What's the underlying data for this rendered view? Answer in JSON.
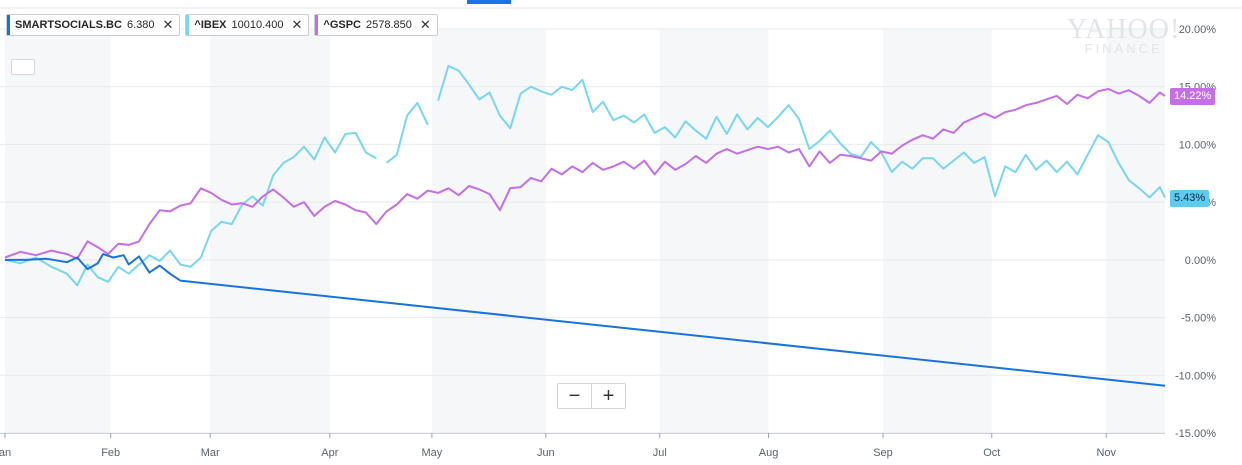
{
  "watermark": {
    "line1": "YAHOO!",
    "line2": "FINANCE"
  },
  "legend": [
    {
      "symbol": "SMARTSOCIALS.BC",
      "value": "6.380",
      "color": "#1874dc"
    },
    {
      "symbol": "^IBEX",
      "value": "10010.400",
      "color": "#78d6f0"
    },
    {
      "symbol": "^GSPC",
      "value": "2578.850",
      "color": "#c46ee8"
    }
  ],
  "zoom": {
    "minus": "−",
    "plus": "+"
  },
  "last_labels": {
    "gspc": "14.22%",
    "ibex": "5.43%"
  },
  "chart_data": {
    "type": "line",
    "x_unit": "trading day index (0 = early Jan)",
    "x_range": [
      0,
      225
    ],
    "ylim": [
      -15,
      20
    ],
    "y_ticks": [
      "20.00%",
      "15.00%",
      "10.00%",
      "5.00%",
      "0.00%",
      "-5.00%",
      "-10.00%",
      "-15.00%"
    ],
    "y_tick_values": [
      20,
      15,
      10,
      5,
      0,
      -5,
      -10,
      -15
    ],
    "months": [
      {
        "label": "an",
        "x": 0
      },
      {
        "label": "Feb",
        "x": 20.5
      },
      {
        "label": "Mar",
        "x": 39.8
      },
      {
        "label": "Apr",
        "x": 63.0
      },
      {
        "label": "May",
        "x": 82.8
      },
      {
        "label": "Jun",
        "x": 104.9
      },
      {
        "label": "Jul",
        "x": 127.0
      },
      {
        "label": "Aug",
        "x": 148.1
      },
      {
        "label": "Sep",
        "x": 170.3
      },
      {
        "label": "Oct",
        "x": 191.4
      },
      {
        "label": "Nov",
        "x": 213.6
      }
    ],
    "grid": true,
    "legend_position": "top-left",
    "series": [
      {
        "name": "SMARTSOCIALS.BC",
        "color": "#1874dc",
        "points": [
          [
            0,
            0.0
          ],
          [
            4,
            0.0
          ],
          [
            8,
            0.1
          ],
          [
            12,
            -0.2
          ],
          [
            14,
            0.2
          ],
          [
            16,
            -0.8
          ],
          [
            18,
            -0.3
          ],
          [
            19,
            0.5
          ],
          [
            21,
            0.2
          ],
          [
            23,
            0.4
          ],
          [
            24,
            -0.4
          ],
          [
            26,
            0.3
          ],
          [
            28,
            -1.1
          ],
          [
            30,
            -0.5
          ],
          [
            32,
            -1.2
          ],
          [
            34,
            -1.8
          ],
          [
            225,
            -10.9
          ]
        ]
      },
      {
        "name": "^IBEX",
        "color": "#78d6f0",
        "segments": [
          [
            [
              0,
              0.0
            ],
            [
              3,
              -0.3
            ],
            [
              6,
              0.2
            ],
            [
              9,
              -0.6
            ],
            [
              12,
              -1.2
            ],
            [
              14,
              -2.2
            ],
            [
              16,
              -0.4
            ],
            [
              18,
              -1.5
            ],
            [
              20,
              -1.9
            ],
            [
              22,
              -0.6
            ],
            [
              24,
              -1.2
            ],
            [
              26,
              -0.4
            ],
            [
              28,
              0.4
            ],
            [
              30,
              -0.1
            ],
            [
              32,
              0.8
            ],
            [
              34,
              -0.4
            ],
            [
              36,
              -0.6
            ],
            [
              38,
              0.2
            ],
            [
              40,
              2.5
            ],
            [
              42,
              3.3
            ],
            [
              44,
              3.1
            ],
            [
              46,
              4.8
            ],
            [
              48,
              5.5
            ],
            [
              50,
              4.7
            ],
            [
              52,
              7.3
            ],
            [
              54,
              8.4
            ],
            [
              56,
              8.9
            ],
            [
              58,
              9.8
            ],
            [
              60,
              8.7
            ],
            [
              62,
              10.6
            ],
            [
              64,
              9.3
            ],
            [
              66,
              10.9
            ],
            [
              68,
              11.0
            ],
            [
              70,
              9.3
            ],
            [
              72,
              8.8
            ]
          ],
          [
            [
              74,
              8.4
            ],
            [
              76,
              9.1
            ],
            [
              78,
              12.5
            ],
            [
              80,
              13.6
            ],
            [
              82,
              11.7
            ]
          ],
          [
            [
              84,
              13.8
            ],
            [
              86,
              16.8
            ],
            [
              88,
              16.4
            ],
            [
              90,
              15.2
            ],
            [
              92,
              13.9
            ],
            [
              94,
              14.5
            ],
            [
              96,
              12.5
            ],
            [
              98,
              11.4
            ],
            [
              100,
              14.4
            ],
            [
              102,
              15.0
            ],
            [
              104,
              14.6
            ],
            [
              106,
              14.3
            ],
            [
              108,
              15.0
            ],
            [
              110,
              14.7
            ],
            [
              112,
              15.6
            ],
            [
              114,
              12.8
            ],
            [
              116,
              13.7
            ],
            [
              118,
              12.1
            ],
            [
              120,
              12.5
            ],
            [
              122,
              11.9
            ],
            [
              124,
              12.6
            ],
            [
              126,
              11.0
            ],
            [
              128,
              11.5
            ],
            [
              130,
              10.6
            ],
            [
              132,
              12.0
            ],
            [
              134,
              11.2
            ],
            [
              136,
              10.5
            ],
            [
              138,
              12.4
            ],
            [
              140,
              10.9
            ],
            [
              142,
              12.6
            ],
            [
              144,
              11.3
            ],
            [
              146,
              12.3
            ],
            [
              148,
              11.5
            ],
            [
              150,
              12.4
            ],
            [
              152,
              13.4
            ],
            [
              154,
              12.2
            ],
            [
              156,
              9.6
            ],
            [
              158,
              10.3
            ],
            [
              160,
              11.2
            ],
            [
              162,
              10.1
            ],
            [
              164,
              9.2
            ],
            [
              166,
              8.9
            ],
            [
              168,
              10.2
            ],
            [
              170,
              9.3
            ],
            [
              172,
              7.6
            ],
            [
              174,
              8.5
            ],
            [
              176,
              7.9
            ],
            [
              178,
              8.8
            ],
            [
              180,
              8.8
            ],
            [
              182,
              7.9
            ],
            [
              184,
              8.6
            ],
            [
              186,
              9.3
            ],
            [
              188,
              8.4
            ],
            [
              190,
              8.9
            ],
            [
              192,
              5.5
            ],
            [
              194,
              8.1
            ],
            [
              196,
              7.6
            ],
            [
              198,
              9.1
            ],
            [
              200,
              7.8
            ],
            [
              202,
              8.6
            ],
            [
              204,
              7.6
            ],
            [
              206,
              8.5
            ],
            [
              208,
              7.4
            ],
            [
              210,
              9.1
            ],
            [
              212,
              10.8
            ],
            [
              214,
              10.2
            ],
            [
              216,
              8.4
            ],
            [
              218,
              6.9
            ],
            [
              220,
              6.2
            ],
            [
              222,
              5.4
            ],
            [
              224,
              6.3
            ],
            [
              225,
              5.4
            ]
          ]
        ]
      },
      {
        "name": "^GSPC",
        "color": "#c46ee8",
        "points": [
          [
            0,
            0.2
          ],
          [
            3,
            0.7
          ],
          [
            6,
            0.4
          ],
          [
            9,
            0.8
          ],
          [
            12,
            0.5
          ],
          [
            14,
            0.1
          ],
          [
            16,
            1.6
          ],
          [
            18,
            1.1
          ],
          [
            20,
            0.5
          ],
          [
            22,
            1.4
          ],
          [
            24,
            1.3
          ],
          [
            26,
            1.6
          ],
          [
            28,
            3.1
          ],
          [
            30,
            4.3
          ],
          [
            32,
            4.2
          ],
          [
            34,
            4.7
          ],
          [
            36,
            4.9
          ],
          [
            38,
            6.2
          ],
          [
            40,
            5.8
          ],
          [
            42,
            5.2
          ],
          [
            44,
            4.8
          ],
          [
            46,
            4.9
          ],
          [
            48,
            4.6
          ],
          [
            50,
            5.5
          ],
          [
            52,
            6.1
          ],
          [
            54,
            5.4
          ],
          [
            56,
            4.6
          ],
          [
            58,
            5.0
          ],
          [
            60,
            3.8
          ],
          [
            62,
            4.6
          ],
          [
            64,
            5.1
          ],
          [
            66,
            4.8
          ],
          [
            68,
            4.3
          ],
          [
            70,
            4.1
          ],
          [
            72,
            3.1
          ],
          [
            74,
            4.2
          ],
          [
            76,
            4.8
          ],
          [
            78,
            5.7
          ],
          [
            80,
            5.3
          ],
          [
            82,
            6.0
          ],
          [
            84,
            5.8
          ],
          [
            86,
            6.2
          ],
          [
            88,
            5.6
          ],
          [
            90,
            6.4
          ],
          [
            92,
            6.1
          ],
          [
            94,
            5.7
          ],
          [
            96,
            4.3
          ],
          [
            98,
            6.2
          ],
          [
            100,
            6.3
          ],
          [
            102,
            7.1
          ],
          [
            104,
            6.8
          ],
          [
            106,
            7.9
          ],
          [
            108,
            7.4
          ],
          [
            110,
            8.1
          ],
          [
            112,
            7.6
          ],
          [
            114,
            8.4
          ],
          [
            116,
            7.8
          ],
          [
            118,
            8.1
          ],
          [
            120,
            8.5
          ],
          [
            122,
            7.9
          ],
          [
            124,
            8.6
          ],
          [
            126,
            7.4
          ],
          [
            128,
            8.5
          ],
          [
            130,
            7.8
          ],
          [
            132,
            8.3
          ],
          [
            134,
            9.0
          ],
          [
            136,
            8.4
          ],
          [
            138,
            9.2
          ],
          [
            140,
            9.6
          ],
          [
            142,
            9.2
          ],
          [
            144,
            9.5
          ],
          [
            146,
            9.8
          ],
          [
            148,
            9.6
          ],
          [
            150,
            9.8
          ],
          [
            152,
            9.3
          ],
          [
            154,
            9.6
          ],
          [
            156,
            8.1
          ],
          [
            158,
            9.4
          ],
          [
            160,
            8.4
          ],
          [
            162,
            9.1
          ],
          [
            164,
            9.0
          ],
          [
            166,
            8.8
          ],
          [
            168,
            8.6
          ],
          [
            170,
            9.4
          ],
          [
            172,
            9.2
          ],
          [
            174,
            9.9
          ],
          [
            176,
            10.4
          ],
          [
            178,
            10.8
          ],
          [
            180,
            10.5
          ],
          [
            182,
            11.3
          ],
          [
            184,
            11.0
          ],
          [
            186,
            11.9
          ],
          [
            188,
            12.3
          ],
          [
            190,
            12.7
          ],
          [
            192,
            12.3
          ],
          [
            194,
            12.8
          ],
          [
            196,
            13.0
          ],
          [
            198,
            13.4
          ],
          [
            200,
            13.6
          ],
          [
            202,
            13.9
          ],
          [
            204,
            14.2
          ],
          [
            206,
            13.5
          ],
          [
            208,
            14.3
          ],
          [
            210,
            14.0
          ],
          [
            212,
            14.6
          ],
          [
            214,
            14.8
          ],
          [
            216,
            14.4
          ],
          [
            218,
            14.7
          ],
          [
            220,
            14.2
          ],
          [
            222,
            13.6
          ],
          [
            224,
            14.5
          ],
          [
            225,
            14.2
          ]
        ]
      }
    ]
  }
}
